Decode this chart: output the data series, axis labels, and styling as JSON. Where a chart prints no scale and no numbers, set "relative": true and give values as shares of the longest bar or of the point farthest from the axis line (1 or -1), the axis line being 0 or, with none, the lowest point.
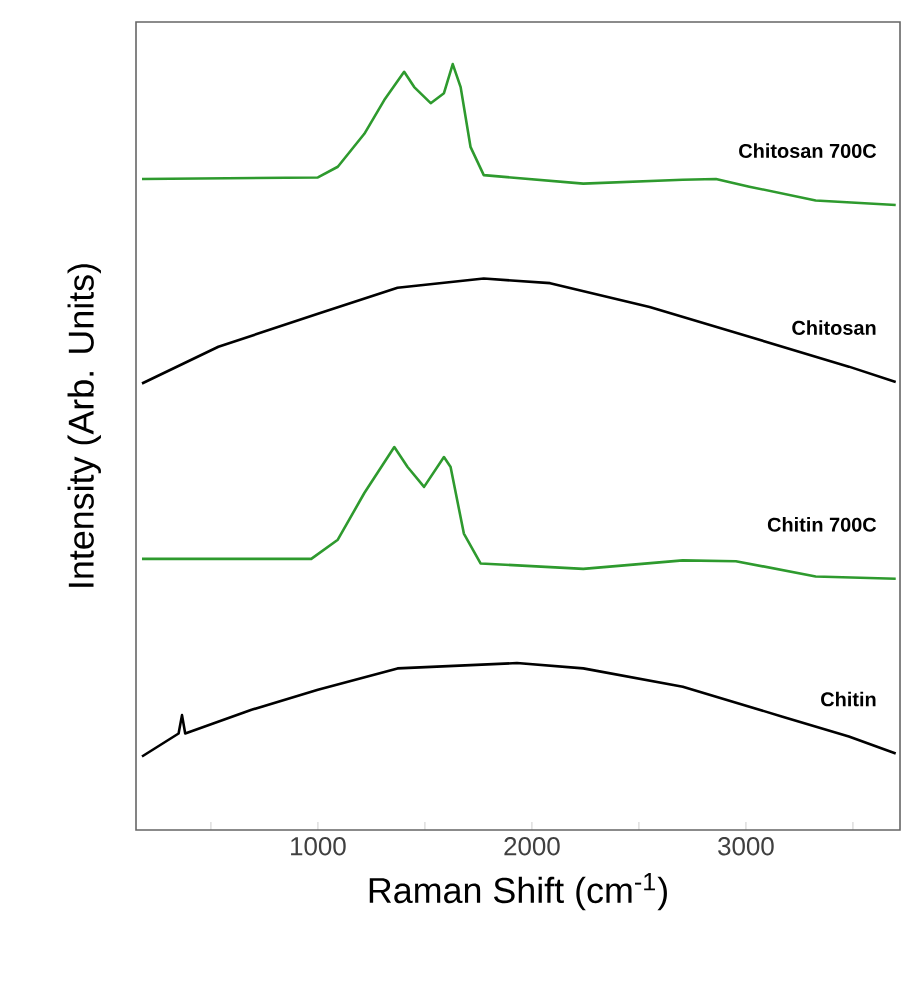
{
  "chart_data": {
    "type": "line",
    "relative": true,
    "xlabel": "Raman Shift (cm$^{-1}$)",
    "ylabel": "Intensity (Arb. Units)",
    "xlim": [
      150,
      3720
    ],
    "xticks": [
      {
        "value": 500,
        "label": null
      },
      1000,
      {
        "value": 1500,
        "label": null
      },
      2000,
      {
        "value": 2500,
        "label": null
      },
      3000,
      {
        "value": 3500,
        "label": null
      }
    ],
    "grid": false,
    "legend": false,
    "marker": "none",
    "line_style": "solid",
    "series": [
      {
        "name": "Chitosan 700C",
        "color": "#2e9a2e",
        "x": [
          178,
          1000,
          1093,
          1217,
          1310,
          1403,
          1450,
          1527,
          1589,
          1630,
          1667,
          1713,
          1775,
          2240,
          2705,
          2860,
          3016,
          3326,
          3700
        ],
        "values": [
          0.85,
          0.852,
          0.866,
          0.909,
          0.953,
          0.99,
          0.97,
          0.949,
          0.962,
          1.0,
          0.97,
          0.892,
          0.855,
          0.844,
          0.849,
          0.85,
          0.84,
          0.822,
          0.816
        ]
      },
      {
        "name": "Chitosan",
        "color": "#000000",
        "x": [
          178,
          535,
          1000,
          1372,
          1775,
          2085,
          2550,
          3016,
          3481,
          3700
        ],
        "values": [
          0.583,
          0.631,
          0.674,
          0.708,
          0.72,
          0.714,
          0.683,
          0.644,
          0.605,
          0.585
        ]
      },
      {
        "name": "Chitin 700C",
        "color": "#2e9a2e",
        "x": [
          178,
          969,
          1093,
          1217,
          1357,
          1419,
          1496,
          1589,
          1620,
          1682,
          1760,
          2240,
          2705,
          2953,
          3326,
          3700
        ],
        "values": [
          0.354,
          0.354,
          0.379,
          0.44,
          0.5,
          0.474,
          0.448,
          0.487,
          0.474,
          0.387,
          0.348,
          0.341,
          0.352,
          0.351,
          0.331,
          0.328
        ]
      },
      {
        "name": "Chitin",
        "color": "#000000",
        "x": [
          178,
          349,
          365,
          380,
          690,
          1000,
          1372,
          1930,
          2240,
          2705,
          3171,
          3481,
          3700
        ],
        "values": [
          0.096,
          0.126,
          0.15,
          0.126,
          0.157,
          0.183,
          0.211,
          0.218,
          0.211,
          0.187,
          0.148,
          0.122,
          0.1
        ]
      }
    ]
  }
}
